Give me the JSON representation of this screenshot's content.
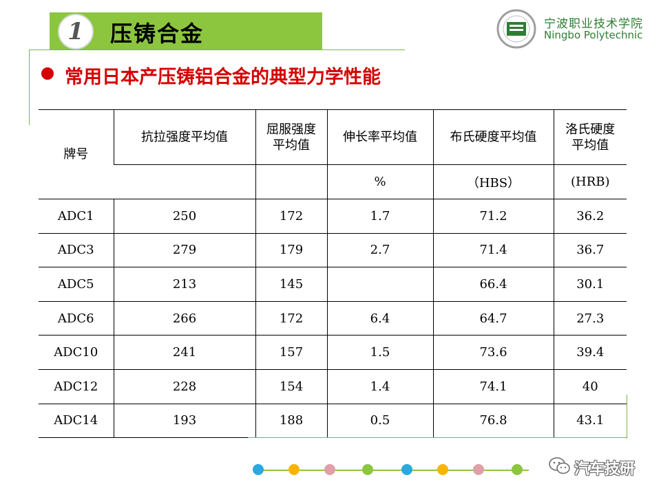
{
  "header": {
    "number": "1",
    "section_title": "压铸合金",
    "school_name_cn": "宁波职业技术学院",
    "school_name_en": "Ningbo Polytechnic"
  },
  "subtitle": "常用日本产压铸铝合金的典型力学性能",
  "table": {
    "headers": {
      "grade": "牌号",
      "tensile": "抗拉强度平均值",
      "yield": "屈服强度平均值",
      "elongation": "伸长率平均值",
      "brinell": "布氏硬度平均值",
      "rockwell": "洛氏硬度平均值"
    },
    "units": {
      "tensile": "",
      "yield": "",
      "elongation": "%",
      "brinell": "（HBS）",
      "rockwell": "(HRB)"
    },
    "rows": [
      {
        "grade": "ADC1",
        "tensile": "250",
        "yield": "172",
        "elongation": "1.7",
        "brinell": "71.2",
        "rockwell": "36.2"
      },
      {
        "grade": "ADC3",
        "tensile": "279",
        "yield": "179",
        "elongation": "2.7",
        "brinell": "71.4",
        "rockwell": "36.7"
      },
      {
        "grade": "ADC5",
        "tensile": "213",
        "yield": "145",
        "elongation": "",
        "brinell": "66.4",
        "rockwell": "30.1"
      },
      {
        "grade": "ADC6",
        "tensile": "266",
        "yield": "172",
        "elongation": "6.4",
        "brinell": "64.7",
        "rockwell": "27.3"
      },
      {
        "grade": "ADC10",
        "tensile": "241",
        "yield": "157",
        "elongation": "1.5",
        "brinell": "73.6",
        "rockwell": "39.4"
      },
      {
        "grade": "ADC12",
        "tensile": "228",
        "yield": "154",
        "elongation": "1.4",
        "brinell": "74.1",
        "rockwell": "40"
      },
      {
        "grade": "ADC14",
        "tensile": "193",
        "yield": "188",
        "elongation": "0.5",
        "brinell": "76.8",
        "rockwell": "43.1"
      }
    ]
  },
  "decor": {
    "dot_colors": [
      "#29a9e0",
      "#f7b500",
      "#e0a0a8",
      "#8cc63f",
      "#29a9e0",
      "#f7b500",
      "#e0a0a8",
      "#8cc63f"
    ]
  },
  "watermark": "汽车技研"
}
